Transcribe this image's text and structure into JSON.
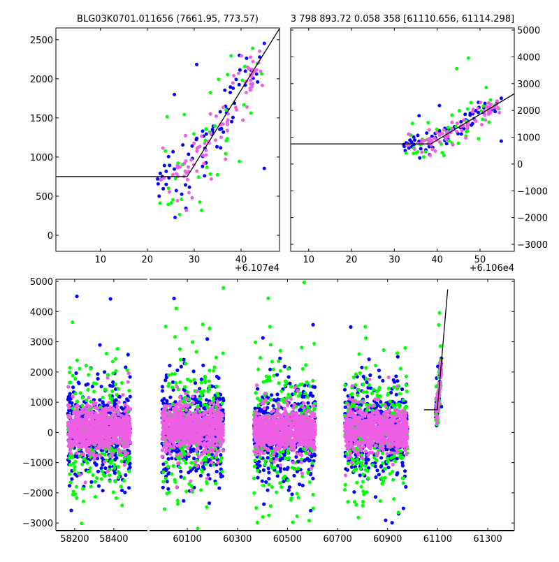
{
  "chart_data": [
    {
      "id": "top-left",
      "type": "scatter",
      "title": "BLG03K0701.011656 (7661.95, 773.57)",
      "x_offset_label": "+6.107e4",
      "x_offset": 61070,
      "xlim": [
        61070.5,
        61118.2
      ],
      "ylim": [
        -205,
        2650
      ],
      "xticks": [
        10,
        20,
        30,
        40
      ],
      "yticks": [
        0,
        500,
        1000,
        1500,
        2000,
        2500
      ],
      "yaxis_side": "left",
      "grid": false
    },
    {
      "id": "top-right",
      "type": "scatter",
      "title": "3 798 893.72 0.058 358 [61110.656, 61114.298]",
      "x_offset_label": "+6.106e4",
      "x_offset": 61060,
      "xlim": [
        61065.8,
        61118.0
      ],
      "ylim": [
        -3260,
        5080
      ],
      "xticks": [
        10,
        20,
        30,
        40,
        50
      ],
      "yticks": [
        -3000,
        -2000,
        -1000,
        0,
        1000,
        2000,
        3000,
        4000,
        5000
      ],
      "yaxis_side": "right",
      "grid": false
    },
    {
      "id": "bottom",
      "type": "scatter",
      "broken_x_axis": true,
      "segments": [
        {
          "xlim": [
            58104,
            58572
          ],
          "xticks": [
            58200,
            58400
          ]
        },
        {
          "xlim": [
            59949,
            61406
          ],
          "xticks": [
            60100,
            60300,
            60500,
            60700,
            60900,
            61100,
            61300
          ]
        }
      ],
      "ylim": [
        -3250,
        5070
      ],
      "yticks": [
        -3000,
        -2000,
        -1000,
        0,
        1000,
        2000,
        3000,
        4000,
        5000
      ],
      "yaxis_side": "left",
      "grid": false
    }
  ],
  "model": {
    "baseline": 750,
    "break_time": 61098.5,
    "slope_per_day": 96,
    "baseline_start": 61045
  },
  "series": [
    {
      "name": "blue",
      "color": "#0000ff",
      "season_sigma": 750,
      "season_count": 450,
      "event_sigma": 220,
      "event_count": 70
    },
    {
      "name": "green",
      "color": "#00ff00",
      "season_sigma": 1050,
      "season_count": 260,
      "event_sigma": 480,
      "event_count": 45
    },
    {
      "name": "magenta",
      "color": "#ee5ee4",
      "season_sigma": 330,
      "season_count": 750,
      "event_sigma": 170,
      "event_count": 85
    }
  ],
  "seasons": [
    [
      58165,
      58486
    ],
    [
      59999,
      60245
    ],
    [
      60366,
      60611
    ],
    [
      60729,
      60980
    ]
  ],
  "event_window": [
    61092,
    61115
  ]
}
